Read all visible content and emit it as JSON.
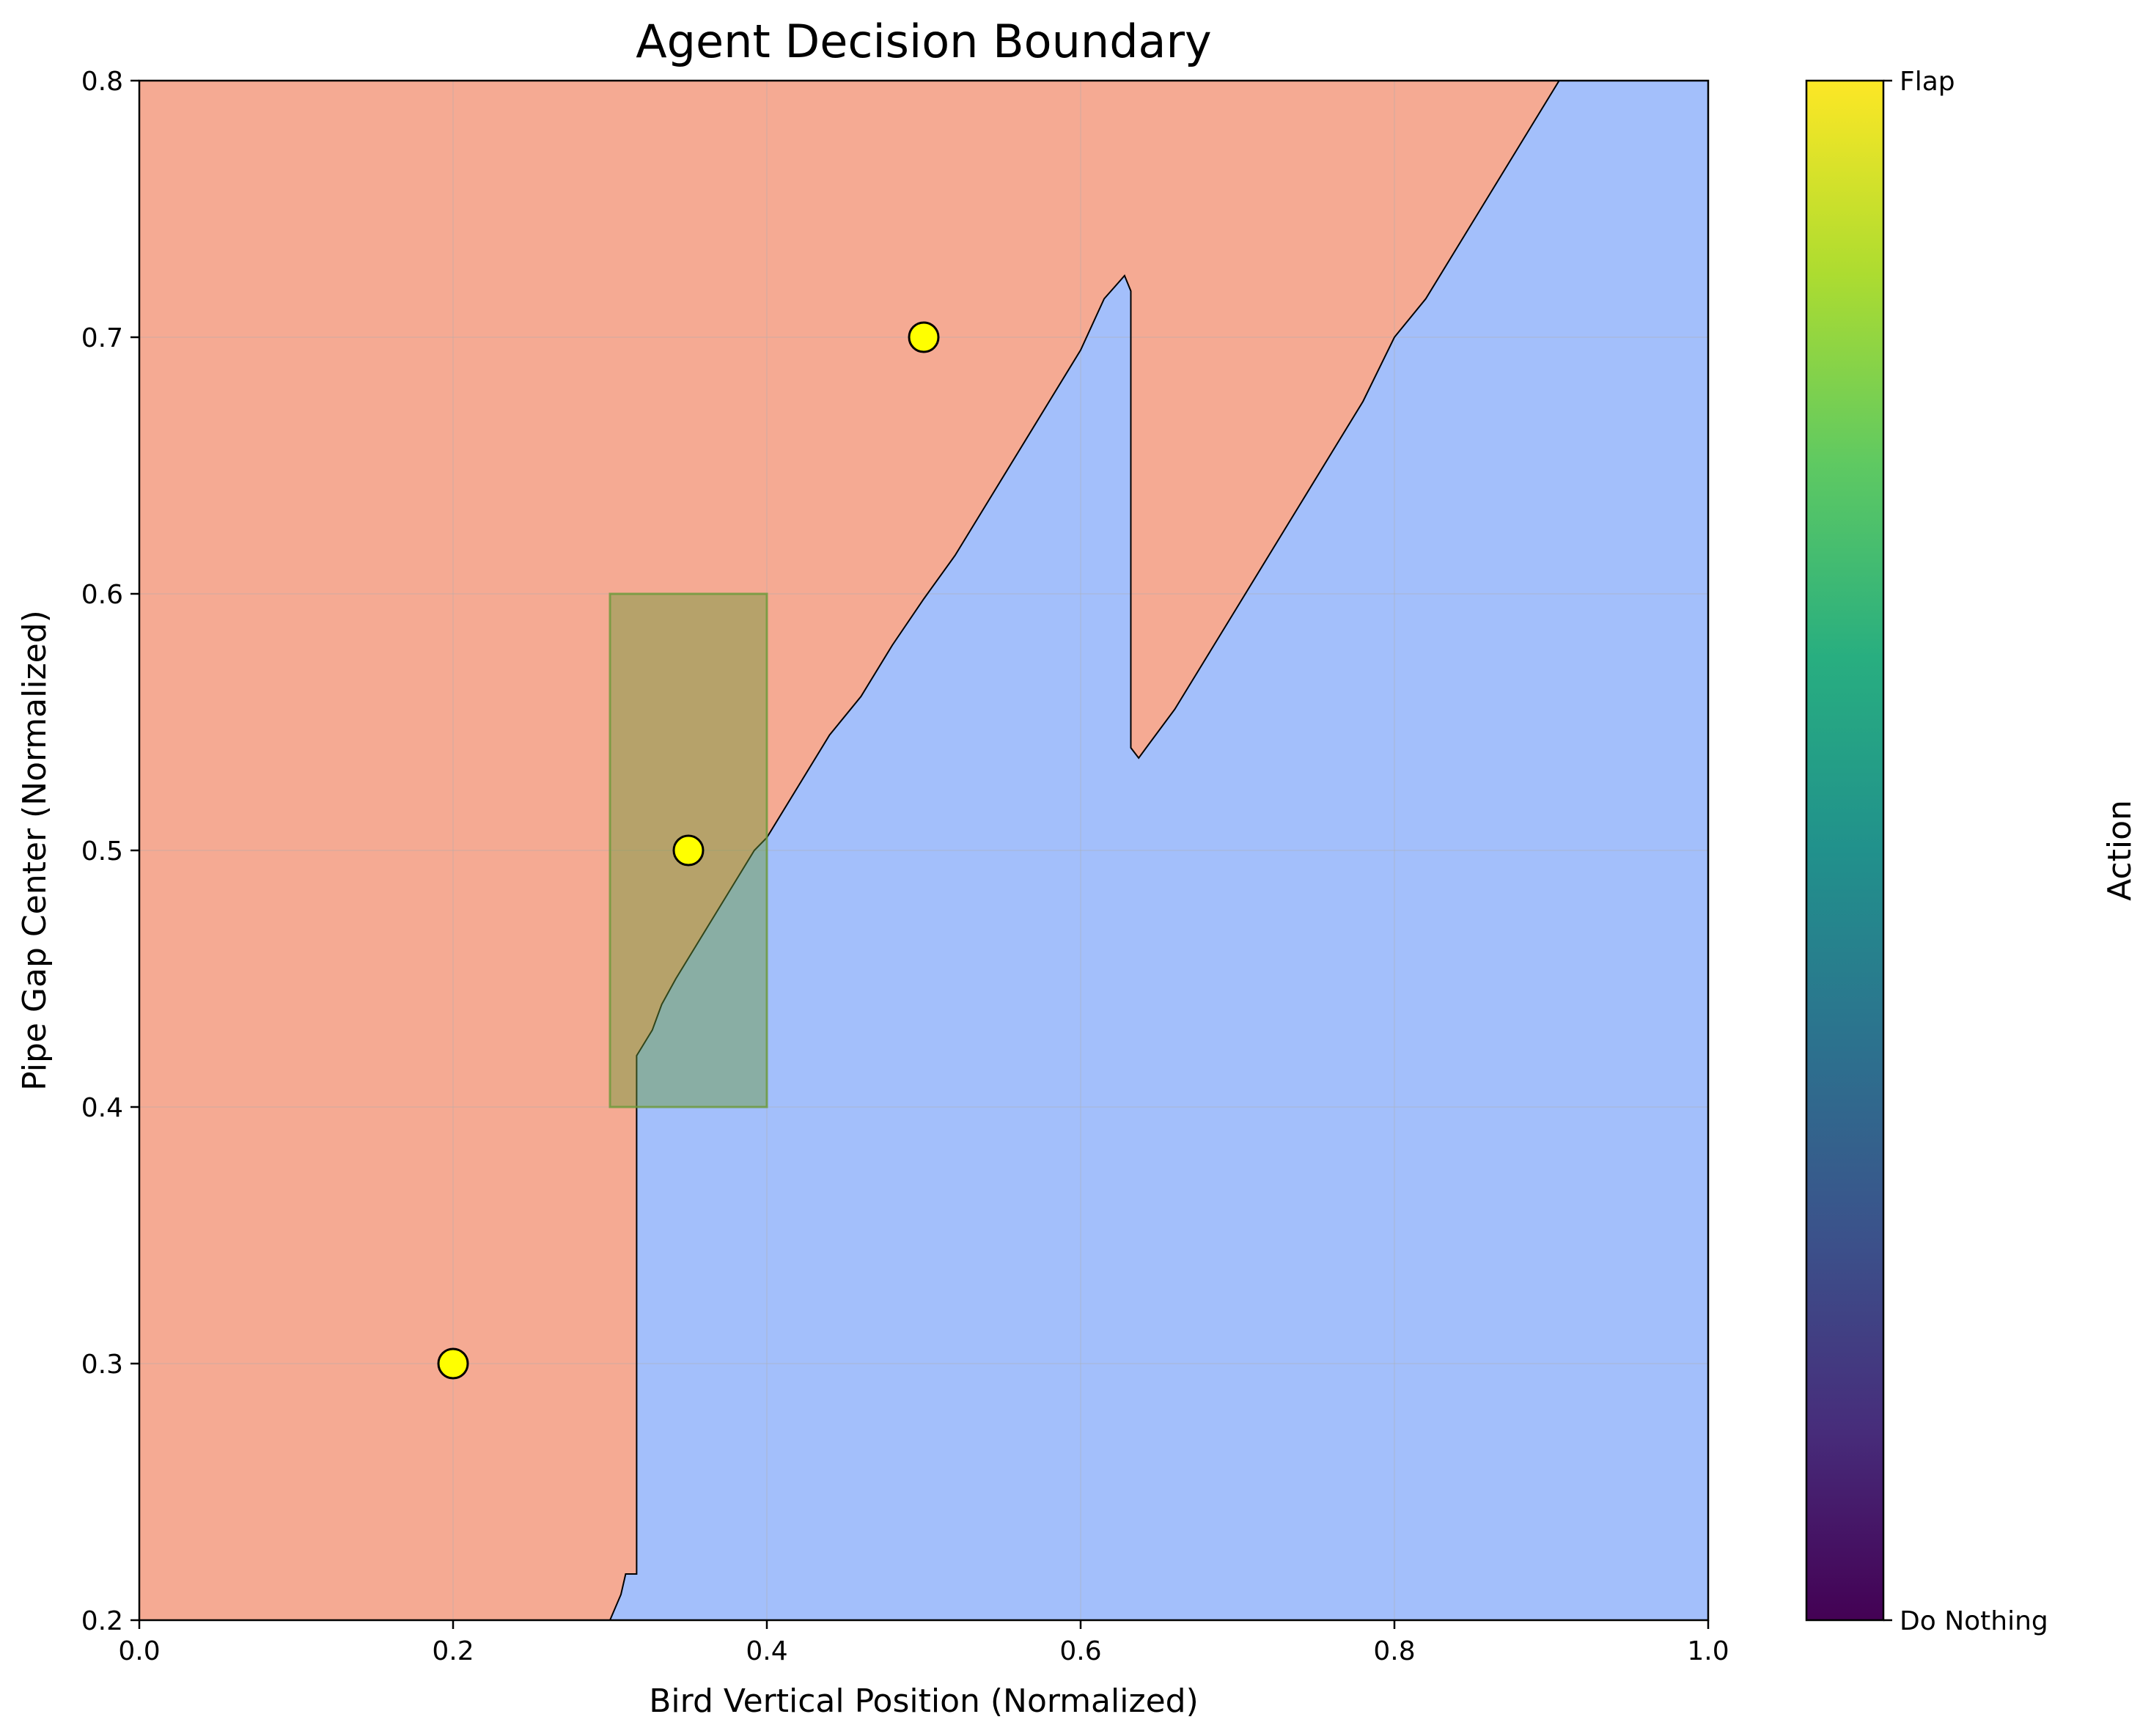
{
  "chart_data": {
    "type": "heatmap",
    "title": "Agent Decision Boundary",
    "xlabel": "Bird Vertical Position (Normalized)",
    "ylabel": "Pipe Gap Center (Normalized)",
    "xlim": [
      0.0,
      1.0
    ],
    "ylim": [
      0.2,
      0.8
    ],
    "xticks": [
      "0.0",
      "0.2",
      "0.4",
      "0.6",
      "0.8",
      "1.0"
    ],
    "yticks": [
      "0.2",
      "0.3",
      "0.4",
      "0.5",
      "0.6",
      "0.7",
      "0.8"
    ],
    "grid": true,
    "regions": [
      {
        "class": "Flap",
        "color": "#f5aa93",
        "description": "upper-left region"
      },
      {
        "class": "Do Nothing",
        "color": "#a3bffb",
        "description": "lower-right region"
      }
    ],
    "decision_boundary": [
      [
        0.3,
        0.2
      ],
      [
        0.307,
        0.21
      ],
      [
        0.31,
        0.218
      ],
      [
        0.317,
        0.218
      ],
      [
        0.317,
        0.42
      ],
      [
        0.327,
        0.43
      ],
      [
        0.333,
        0.44
      ],
      [
        0.342,
        0.45
      ],
      [
        0.352,
        0.46
      ],
      [
        0.362,
        0.47
      ],
      [
        0.372,
        0.48
      ],
      [
        0.382,
        0.49
      ],
      [
        0.392,
        0.5
      ],
      [
        0.4,
        0.505
      ],
      [
        0.42,
        0.525
      ],
      [
        0.44,
        0.545
      ],
      [
        0.46,
        0.56
      ],
      [
        0.48,
        0.58
      ],
      [
        0.5,
        0.598
      ],
      [
        0.52,
        0.615
      ],
      [
        0.54,
        0.635
      ],
      [
        0.56,
        0.655
      ],
      [
        0.58,
        0.675
      ],
      [
        0.6,
        0.695
      ],
      [
        0.615,
        0.715
      ],
      [
        0.628,
        0.724
      ],
      [
        0.632,
        0.718
      ],
      [
        0.632,
        0.54
      ],
      [
        0.637,
        0.536
      ],
      [
        0.643,
        0.541
      ],
      [
        0.66,
        0.555
      ],
      [
        0.68,
        0.575
      ],
      [
        0.7,
        0.595
      ],
      [
        0.72,
        0.615
      ],
      [
        0.74,
        0.635
      ],
      [
        0.76,
        0.655
      ],
      [
        0.78,
        0.675
      ],
      [
        0.8,
        0.7
      ],
      [
        0.82,
        0.715
      ],
      [
        0.84,
        0.735
      ],
      [
        0.86,
        0.755
      ],
      [
        0.88,
        0.775
      ],
      [
        0.9,
        0.795
      ],
      [
        0.905,
        0.8
      ]
    ],
    "highlight_rect": {
      "x": [
        0.3,
        0.4
      ],
      "y": [
        0.4,
        0.6
      ],
      "color": "#6b9a3a",
      "opacity": 0.45
    },
    "points": [
      {
        "x": 0.2,
        "y": 0.3
      },
      {
        "x": 0.35,
        "y": 0.5
      },
      {
        "x": 0.5,
        "y": 0.7
      }
    ],
    "point_color": "#ffff00",
    "colorbar": {
      "label": "Action",
      "colormap": "viridis",
      "ticks": [
        "Do Nothing",
        "Flap"
      ]
    }
  }
}
